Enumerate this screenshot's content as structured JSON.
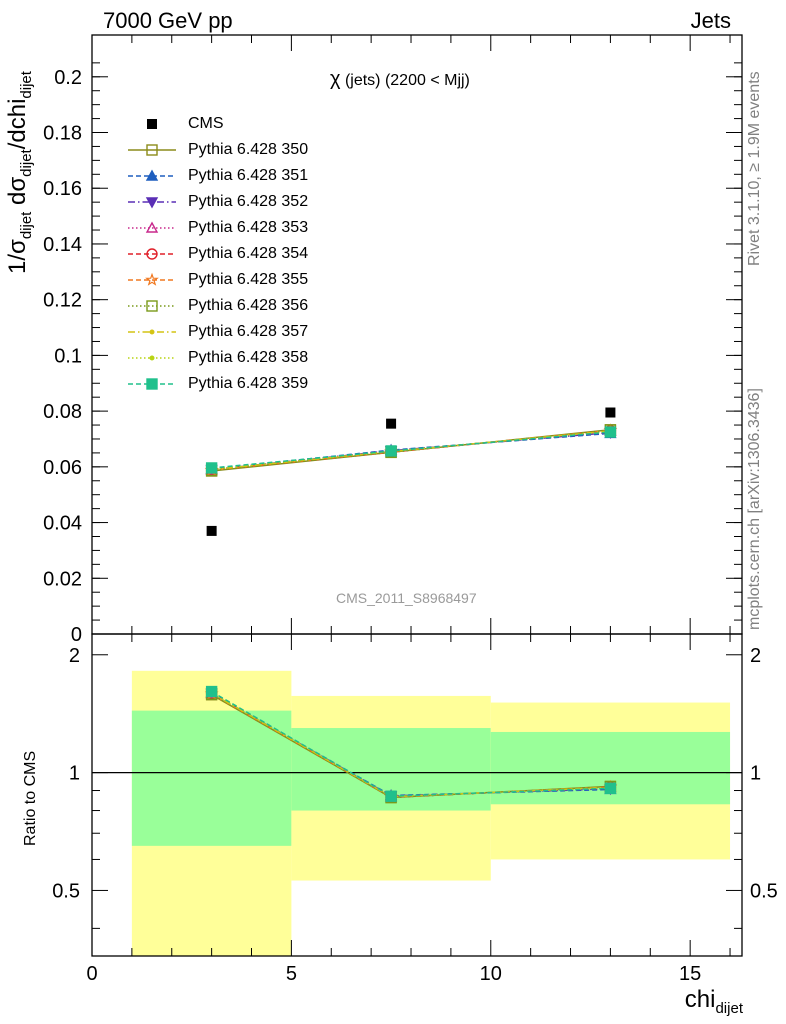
{
  "header": {
    "left": "7000 GeV pp",
    "right": "Jets"
  },
  "side_labels": {
    "rivet": "Rivet 3.1.10, ≥ 1.9M events",
    "mcplots": "mcplots.cern.ch [arXiv:1306.3436]"
  },
  "chart_data": {
    "type": "line",
    "title_main": "χ",
    "title_rest": "(jets) (2200 < Mjj)",
    "watermark": "CMS_2011_S8968497",
    "xlabel_main": "chi",
    "xlabel_sub": "dijet",
    "ylabel_parts": [
      "1/σ",
      "dijet",
      " dσ",
      "dijet",
      "/dchi",
      "dijet"
    ],
    "ratio_ylabel": "Ratio to CMS",
    "xlim": [
      0,
      16.3
    ],
    "ylim": [
      0,
      0.215
    ],
    "ratio_ylim": [
      0.34,
      2.26
    ],
    "x_ticks": [
      "0",
      "5",
      "10",
      "15"
    ],
    "y_ticks": [
      "0",
      "0.02",
      "0.04",
      "0.06",
      "0.08",
      "0.1",
      "0.12",
      "0.14",
      "0.16",
      "0.18",
      "0.2"
    ],
    "ratio_ticks": [
      "0.5",
      "1",
      "2"
    ],
    "bins": [
      [
        1,
        5
      ],
      [
        5,
        10
      ],
      [
        10,
        16
      ]
    ],
    "x": [
      3,
      7.5,
      13
    ],
    "data": {
      "name": "CMS",
      "values": [
        0.037,
        0.0755,
        0.0795
      ]
    },
    "band_inner": [
      [
        0.65,
        1.44
      ],
      [
        0.8,
        1.3
      ],
      [
        0.83,
        1.27
      ]
    ],
    "band_outer": [
      [
        0.34,
        1.82
      ],
      [
        0.53,
        1.57
      ],
      [
        0.6,
        1.51
      ]
    ],
    "series": [
      {
        "name": "Pythia 6.428 350",
        "color": "#8b8b1a",
        "marker": "open-square",
        "dash": "solid",
        "values": [
          0.0585,
          0.0652,
          0.0733
        ]
      },
      {
        "name": "Pythia 6.428 351",
        "color": "#1f5fbf",
        "marker": "filled-triangle-up",
        "dash": "dashed",
        "values": [
          0.0592,
          0.066,
          0.072
        ]
      },
      {
        "name": "Pythia 6.428 352",
        "color": "#5a2fb5",
        "marker": "filled-triangle-down",
        "dash": "dashdot",
        "values": [
          0.059,
          0.0658,
          0.0723
        ]
      },
      {
        "name": "Pythia 6.428 353",
        "color": "#c8288c",
        "marker": "open-triangle-up",
        "dash": "dotted",
        "values": [
          0.0589,
          0.0655,
          0.0728
        ]
      },
      {
        "name": "Pythia 6.428 354",
        "color": "#e0202a",
        "marker": "open-circle",
        "dash": "dashed",
        "values": [
          0.0588,
          0.0653,
          0.073
        ]
      },
      {
        "name": "Pythia 6.428 355",
        "color": "#f07820",
        "marker": "open-star",
        "dash": "dashed",
        "values": [
          0.0588,
          0.0654,
          0.073
        ]
      },
      {
        "name": "Pythia 6.428 356",
        "color": "#7a9a1a",
        "marker": "open-square",
        "dash": "dotted",
        "values": [
          0.0587,
          0.0652,
          0.0732
        ]
      },
      {
        "name": "Pythia 6.428 357",
        "color": "#d4c414",
        "marker": "small-dot",
        "dash": "dashdot",
        "values": [
          0.059,
          0.0655,
          0.0729
        ]
      },
      {
        "name": "Pythia 6.428 358",
        "color": "#b8d414",
        "marker": "small-dot",
        "dash": "dotted",
        "values": [
          0.0591,
          0.0656,
          0.0727
        ]
      },
      {
        "name": "Pythia 6.428 359",
        "color": "#20c08c",
        "marker": "filled-square",
        "dash": "dashed",
        "values": [
          0.0596,
          0.0657,
          0.0725
        ]
      }
    ],
    "ratio_values": [
      1.64,
      0.89,
      0.93
    ],
    "colors": {
      "band_inner": "#99ff99",
      "band_outer": "#ffff99",
      "data": "#000000"
    }
  }
}
